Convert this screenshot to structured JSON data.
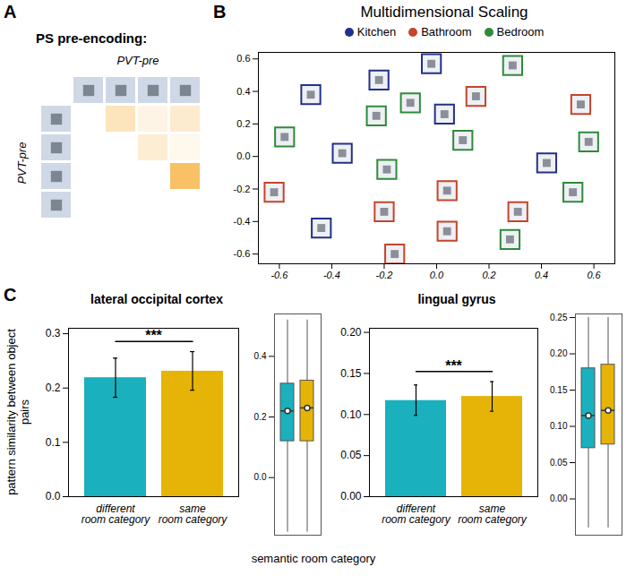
{
  "chart_data": [
    {
      "type": "heatmap",
      "panel_label": "A",
      "title": "PS pre-encoding:",
      "xlabel": "PVT-pre",
      "ylabel": "PVT-pre",
      "categories": [
        null,
        null,
        null,
        null
      ],
      "cells": [
        [
          null,
          0.3,
          0.12,
          0.22
        ],
        [
          null,
          null,
          0.2,
          0.08
        ],
        [
          null,
          null,
          null,
          0.7
        ],
        [
          null,
          null,
          null,
          null
        ]
      ],
      "zlim": [
        0,
        1
      ],
      "color": "#f5a623"
    },
    {
      "type": "scatter",
      "panel_label": "B",
      "title": "Multidimensional Scaling",
      "legend": "top",
      "marker": "square",
      "xlim": [
        -0.68,
        0.68
      ],
      "ylim": [
        -0.66,
        0.64
      ],
      "xticks": [
        -0.6,
        -0.4,
        -0.2,
        {
          "value": 0,
          "label": "0.0"
        },
        0.2,
        0.4,
        0.6
      ],
      "yticks": [
        -0.6,
        -0.4,
        -0.2,
        {
          "value": 0,
          "label": "0.0"
        },
        0.2,
        0.4,
        0.6
      ],
      "series": [
        {
          "name": "Kitchen",
          "color": "#22318a",
          "x": [
            -0.48,
            -0.22,
            -0.02,
            0.03,
            -0.36,
            0.42,
            -0.44
          ],
          "y": [
            0.38,
            0.47,
            0.57,
            0.26,
            0.02,
            -0.04,
            -0.44
          ]
        },
        {
          "name": "Bathroom",
          "color": "#c4452a",
          "x": [
            0.15,
            0.55,
            -0.62,
            0.04,
            0.31,
            -0.2,
            0.04,
            -0.16
          ],
          "y": [
            0.37,
            0.32,
            -0.22,
            -0.21,
            -0.34,
            -0.34,
            -0.46,
            -0.6
          ]
        },
        {
          "name": "Bedroom",
          "color": "#2e8b3a",
          "x": [
            0.29,
            -0.1,
            -0.23,
            -0.58,
            0.1,
            0.58,
            -0.19,
            0.52,
            0.28
          ],
          "y": [
            0.56,
            0.33,
            0.25,
            0.12,
            0.1,
            0.09,
            -0.08,
            -0.22,
            -0.51
          ]
        }
      ]
    },
    {
      "type": "bar",
      "panel_label": "C",
      "title": "lateral occipital cortex",
      "ylabel": "pattern similarity between object pairs",
      "xlabel": "semantic room category",
      "categories": [
        "different room category",
        "same room category"
      ],
      "values": [
        0.219,
        0.231
      ],
      "ci_low": [
        0.183,
        0.196
      ],
      "ci_high": [
        0.255,
        0.267
      ],
      "colors": [
        "#1ab0be",
        "#e5b406"
      ],
      "ylim": [
        0,
        0.31
      ],
      "yticks": [
        {
          "value": 0,
          "label": "0.0"
        },
        0.1,
        0.2,
        0.3
      ],
      "annotation": "***",
      "boxplot": {
        "ylim": [
          -0.19,
          0.54
        ],
        "yticks": [
          {
            "value": 0,
            "label": "0.0"
          },
          0.2,
          0.4
        ],
        "min": [
          -0.18,
          -0.18
        ],
        "q1": [
          0.12,
          0.12
        ],
        "median": [
          0.22,
          0.23
        ],
        "q3": [
          0.31,
          0.32
        ],
        "max": [
          0.52,
          0.52
        ],
        "mean": [
          0.22,
          0.23
        ]
      }
    },
    {
      "type": "bar",
      "title": "lingual gyrus",
      "categories": [
        "different room category",
        "same room category"
      ],
      "values": [
        0.117,
        0.122
      ],
      "ci_low": [
        0.099,
        0.104
      ],
      "ci_high": [
        0.136,
        0.14
      ],
      "colors": [
        "#1ab0be",
        "#e5b406"
      ],
      "ylim": [
        0,
        0.205
      ],
      "yticks": [
        {
          "value": 0,
          "label": "0.00"
        },
        0.05,
        {
          "value": 0.1,
          "label": "0.10"
        },
        0.15,
        {
          "value": 0.2,
          "label": "0.20"
        }
      ],
      "annotation": "***",
      "boxplot": {
        "ylim": [
          -0.05,
          0.255
        ],
        "yticks": [
          {
            "value": 0,
            "label": "0.00"
          },
          0.05,
          {
            "value": 0.1,
            "label": "0.10"
          },
          0.15,
          {
            "value": 0.2,
            "label": "0.20"
          },
          0.25
        ],
        "min": [
          -0.04,
          -0.04
        ],
        "q1": [
          0.07,
          0.075
        ],
        "median": [
          0.115,
          0.122
        ],
        "q3": [
          0.18,
          0.185
        ],
        "max": [
          0.25,
          0.25
        ],
        "mean": [
          0.115,
          0.122
        ]
      }
    }
  ]
}
